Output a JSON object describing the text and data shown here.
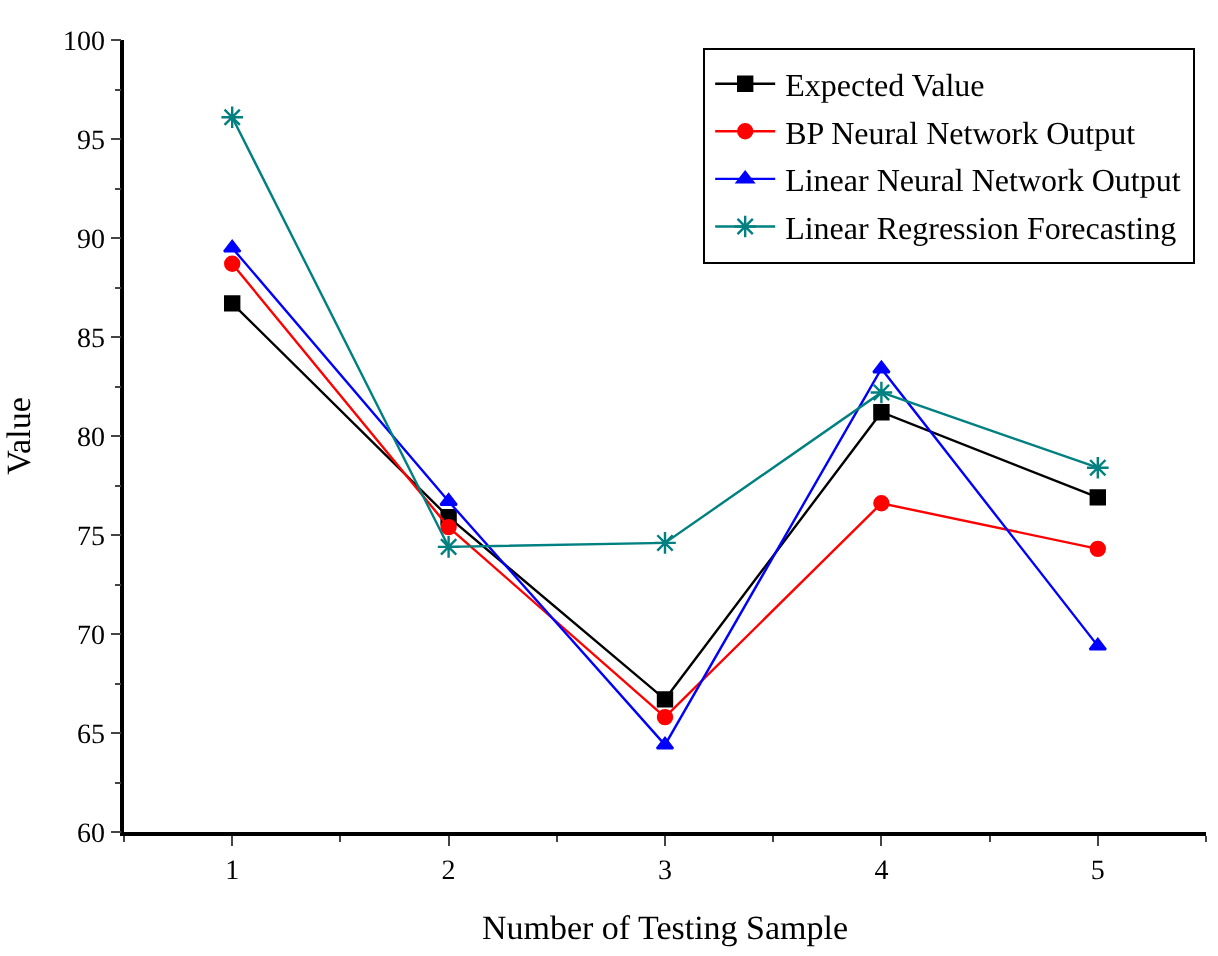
{
  "chart_data": {
    "type": "line",
    "xlabel": "Number of Testing Sample",
    "ylabel": "Value",
    "x": [
      1,
      2,
      3,
      4,
      5
    ],
    "xlim": [
      0.5,
      5.5
    ],
    "xticks": [
      1,
      2,
      3,
      4,
      5
    ],
    "ylim": [
      60,
      100
    ],
    "yticks": [
      60,
      65,
      70,
      75,
      80,
      85,
      90,
      95,
      100
    ],
    "legend": "top right",
    "series": [
      {
        "name": "Expected Value",
        "color": "#000000",
        "marker": "square",
        "values": [
          86.7,
          75.9,
          66.7,
          81.2,
          76.9
        ]
      },
      {
        "name": "BP Neural Network Output",
        "color": "#ff0000",
        "marker": "circle",
        "values": [
          88.7,
          75.4,
          65.8,
          76.6,
          74.3
        ]
      },
      {
        "name": "Linear Neural Network Output",
        "color": "#0000ff",
        "marker": "triangle",
        "values": [
          89.5,
          76.7,
          64.4,
          83.4,
          69.4
        ]
      },
      {
        "name": "Linear Regression Forecasting",
        "color": "#008080",
        "marker": "cross",
        "values": [
          96.1,
          74.4,
          74.6,
          82.2,
          78.4
        ]
      }
    ]
  }
}
